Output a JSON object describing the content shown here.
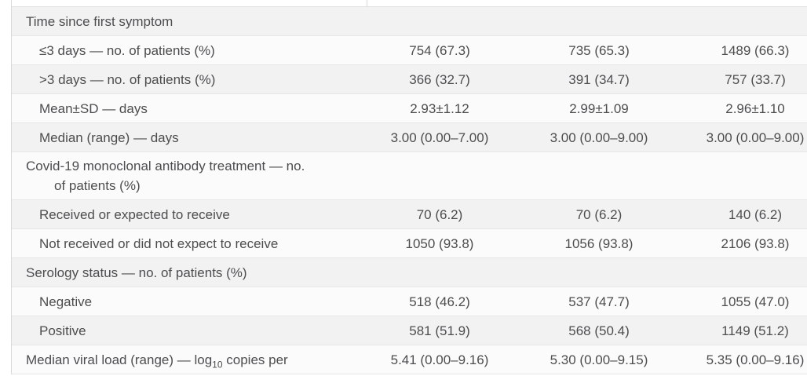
{
  "table": {
    "rows": [
      {
        "type": "section",
        "label": "Time since first symptom",
        "values": [
          "",
          "",
          ""
        ]
      },
      {
        "type": "sub",
        "label": "≤3 days — no. of patients (%)",
        "values": [
          "754 (67.3)",
          "735 (65.3)",
          "1489 (66.3)"
        ]
      },
      {
        "type": "sub",
        "label": ">3 days — no. of patients (%)",
        "values": [
          "366 (32.7)",
          "391 (34.7)",
          "757 (33.7)"
        ]
      },
      {
        "type": "sub",
        "label": "Mean±SD — days",
        "values": [
          "2.93±1.12",
          "2.99±1.09",
          "2.96±1.10"
        ]
      },
      {
        "type": "sub",
        "label": "Median (range) — days",
        "values": [
          "3.00 (0.00–7.00)",
          "3.00 (0.00–9.00)",
          "3.00 (0.00–9.00)"
        ]
      },
      {
        "type": "section",
        "label": "Covid-19 monoclonal antibody treatment — no.\nof patients (%)",
        "values": [
          "",
          "",
          ""
        ]
      },
      {
        "type": "sub",
        "label": "Received or expected to receive",
        "values": [
          "70 (6.2)",
          "70 (6.2)",
          "140 (6.2)"
        ]
      },
      {
        "type": "sub",
        "label": "Not received or did not expect to receive",
        "values": [
          "1050 (93.8)",
          "1056 (93.8)",
          "2106 (93.8)"
        ]
      },
      {
        "type": "section",
        "label": "Serology status — no. of patients (%)",
        "values": [
          "",
          "",
          ""
        ]
      },
      {
        "type": "sub",
        "label": "Negative",
        "values": [
          "518 (46.2)",
          "537 (47.7)",
          "1055 (47.0)"
        ]
      },
      {
        "type": "sub",
        "label": "Positive",
        "values": [
          "581 (51.9)",
          "568 (50.4)",
          "1149 (51.2)"
        ]
      },
      {
        "type": "base",
        "label_pre": "Median viral load (range) — log",
        "label_sub": "10",
        "label_post": " copies per",
        "values": [
          "5.41 (0.00–9.16)",
          "5.30 (0.00–9.15)",
          "5.35 (0.00–9.16)"
        ]
      }
    ],
    "colors": {
      "text": "#4d4d4f",
      "band_gray": "#f2f2f2",
      "band_light": "#fbfbfb",
      "border": "#d9d9d9"
    }
  }
}
